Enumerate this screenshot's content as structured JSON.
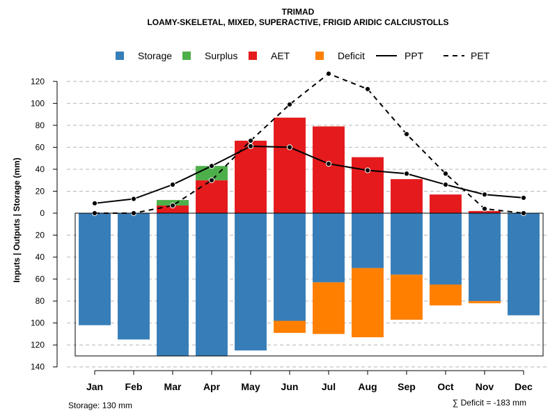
{
  "chart_data": {
    "type": "bar",
    "title": "TRIMAD",
    "subtitle": "LOAMY-SKELETAL, MIXED, SUPERACTIVE, FRIGID ARIDIC CALCIUSTOLLS",
    "ylabel": "Inputs | Outputs | Storage    (mm)",
    "xlabel": "",
    "categories": [
      "Jan",
      "Feb",
      "Mar",
      "Apr",
      "May",
      "Jun",
      "Jul",
      "Aug",
      "Sep",
      "Oct",
      "Nov",
      "Dec"
    ],
    "ylim": [
      -140,
      130
    ],
    "yticks": [
      120,
      100,
      80,
      60,
      40,
      20,
      0,
      -20,
      -40,
      -60,
      -80,
      -100,
      -120,
      -140
    ],
    "ytick_labels": [
      "120",
      "100",
      "80",
      "60",
      "40",
      "20",
      "0",
      "20",
      "40",
      "60",
      "80",
      "100",
      "120",
      "140"
    ],
    "grid": true,
    "legend": {
      "position": "top",
      "entries": [
        {
          "label": "Storage",
          "kind": "square",
          "color": "#377EB8"
        },
        {
          "label": "Surplus",
          "kind": "square",
          "color": "#4DAF4A"
        },
        {
          "label": "AET",
          "kind": "square",
          "color": "#E41A1C"
        },
        {
          "label": "Deficit",
          "kind": "square",
          "color": "#FF7F00"
        },
        {
          "label": "PPT",
          "kind": "solid-line",
          "color": "#000000"
        },
        {
          "label": "PET",
          "kind": "dashed-line",
          "color": "#000000"
        }
      ]
    },
    "storage_capacity": 130,
    "series": [
      {
        "name": "Storage",
        "color": "#377EB8",
        "values": [
          102,
          115,
          130,
          130,
          125,
          98,
          63,
          50,
          56,
          65,
          80,
          93
        ]
      },
      {
        "name": "Deficit",
        "color": "#FF7F00",
        "values": [
          0,
          0,
          0,
          0,
          0,
          11,
          47,
          63,
          41,
          19,
          2,
          0
        ]
      },
      {
        "name": "AET",
        "color": "#E41A1C",
        "values": [
          0,
          0,
          7,
          30,
          66,
          87,
          79,
          51,
          31,
          17,
          2,
          0
        ]
      },
      {
        "name": "Surplus",
        "color": "#4DAF4A",
        "values": [
          0,
          0,
          5,
          13,
          0,
          0,
          0,
          0,
          0,
          0,
          0,
          0
        ]
      },
      {
        "name": "PPT",
        "color": "#000000",
        "style": "solid",
        "values": [
          9,
          13,
          26,
          43,
          61,
          60,
          45,
          39,
          36,
          26,
          17,
          14
        ]
      },
      {
        "name": "PET",
        "color": "#000000",
        "style": "dashed",
        "values": [
          0,
          0,
          7,
          30,
          66,
          99,
          127,
          113,
          72,
          36,
          4,
          0
        ]
      }
    ]
  },
  "footer": {
    "storage_label": "Storage: 130 mm",
    "deficit_label": "∑ Deficit = -183 mm"
  }
}
